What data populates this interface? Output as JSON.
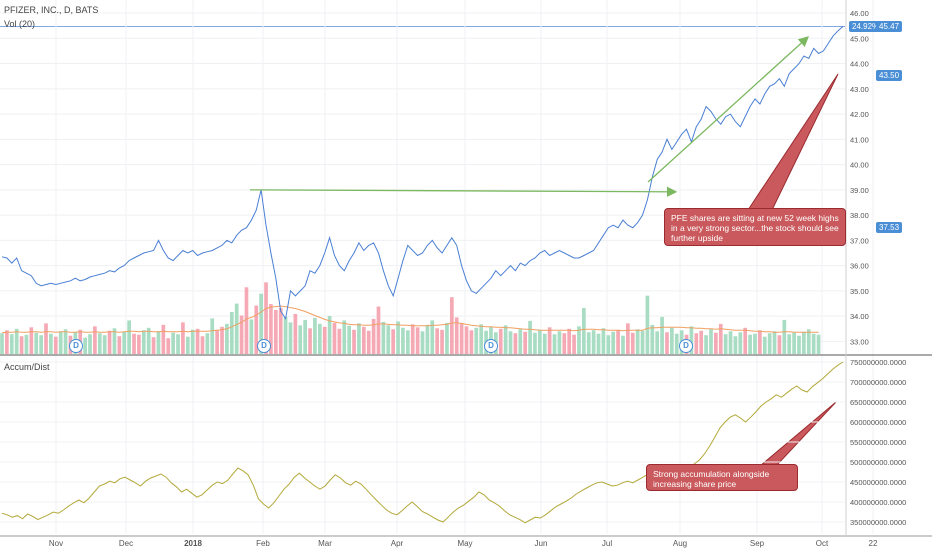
{
  "header": {
    "title": "PFIZER, INC., D, BATS",
    "volume_label": "Vol (20)",
    "accum_label": "Accum/Dist"
  },
  "badges": {
    "change_pct": "24.92%",
    "last_price": "45.47",
    "level_1": "43.50",
    "level_2": "37.53"
  },
  "colors": {
    "price_line": "#4a7fd4",
    "trend_arrow": "#7cb860",
    "callout_fill": "#c9595c",
    "callout_border": "#9a2b2f",
    "volume_up": "#a8dcc3",
    "volume_down": "#f5a9b4",
    "volume_ma": "#f0a060",
    "accum_line": "#b3a93a",
    "badge_blue": "#4a8ed6"
  },
  "annotations": {
    "callout_price": "PFE shares are sitting at new 52 week highs in a very strong sector...the stock should see further upside",
    "callout_accum": "Strong accumulation alongside increasing share price",
    "dividend_marker": "D"
  },
  "chart_data": [
    {
      "type": "line",
      "series": [
        {
          "values": [
            36.35,
            36.3,
            36.1,
            36.3,
            35.8,
            35.7,
            35.6,
            35.3,
            35.2,
            35.25,
            35.3,
            35.25,
            35.3,
            35.35,
            35.4,
            35.5,
            35.4,
            35.45,
            35.55,
            35.6,
            35.65,
            35.7,
            35.8,
            35.75,
            35.9,
            36.0,
            36.2,
            36.3,
            36.4,
            36.5,
            36.55,
            36.6,
            37.0,
            36.6,
            36.3,
            36.2,
            36.4,
            36.6,
            36.5,
            36.6,
            36.4,
            36.5,
            36.55,
            36.6,
            36.7,
            36.8,
            37.0,
            36.9,
            37.2,
            37.4,
            37.5,
            37.8,
            38.2,
            39.0,
            37.6,
            36.5,
            35.5,
            34.2,
            33.9,
            35.0,
            34.8,
            35.0,
            35.2,
            35.8,
            35.7,
            36.0,
            36.5,
            37.1,
            36.4,
            36.0,
            35.8,
            36.2,
            36.5,
            36.9,
            36.6,
            36.8,
            36.9,
            36.5,
            35.8,
            35.2,
            34.8,
            35.5,
            36.2,
            36.8,
            36.6,
            36.4,
            36.5,
            36.8,
            37.0,
            36.7,
            36.5,
            36.8,
            37.1,
            36.8,
            36.0,
            35.4,
            35.0,
            34.9,
            35.1,
            35.3,
            35.5,
            35.8,
            35.6,
            35.8,
            36.0,
            35.8,
            36.1,
            36.0,
            36.2,
            36.3,
            36.5,
            36.6,
            36.4,
            36.5,
            36.6,
            36.5,
            36.4,
            36.3,
            36.3,
            36.4,
            36.5,
            36.6,
            36.9,
            37.2,
            37.5,
            37.6,
            37.5,
            37.8,
            37.6,
            37.5,
            37.7,
            38.0,
            38.6,
            39.5,
            40.2,
            40.5,
            41.0,
            40.6,
            40.9,
            41.2,
            41.4,
            40.9,
            41.5,
            41.8,
            42.3,
            42.1,
            41.8,
            41.6,
            41.9,
            42.0,
            41.7,
            41.5,
            41.9,
            42.3,
            42.6,
            42.4,
            42.8,
            43.1,
            43.2,
            43.4,
            43.1,
            43.6,
            43.8,
            44.0,
            44.3,
            44.2,
            44.6,
            44.4,
            44.5,
            44.8,
            45.1,
            45.3,
            45.47
          ],
          "x_range": [
            "2017-10-09",
            "2018-10-05"
          ]
        }
      ],
      "y_ticks": [
        "33.00",
        "34.00",
        "35.00",
        "36.00",
        "37.00",
        "38.00",
        "39.00",
        "40.00",
        "41.00",
        "42.00",
        "43.00",
        "44.00",
        "45.00",
        "46.00"
      ],
      "ylim": [
        32.5,
        46.2
      ],
      "x_ticks": [
        "Nov",
        "Dec",
        "2018",
        "Feb",
        "Mar",
        "Apr",
        "May",
        "Jun",
        "Jul",
        "Aug",
        "Sep",
        "Oct",
        "22"
      ]
    },
    {
      "type": "bar",
      "series": [
        {
          "values": [
            4.2,
            4.8,
            4.0,
            5.1,
            3.6,
            3.9,
            5.4,
            4.3,
            3.8,
            6.2,
            4.1,
            3.5,
            4.6,
            5.0,
            3.7,
            4.4,
            4.9,
            3.3,
            4.0,
            5.6,
            4.2,
            3.8,
            4.7,
            5.2,
            3.6,
            4.5,
            6.8,
            4.1,
            3.9,
            4.8,
            5.3,
            3.4,
            4.6,
            5.9,
            3.2,
            4.3,
            4.0,
            6.4,
            3.5,
            4.9,
            5.1,
            3.6,
            4.2,
            7.2,
            4.8,
            5.5,
            6.1,
            8.5,
            10.2,
            7.8,
            13.5,
            7.0,
            9.8,
            12.2,
            14.5,
            10.1,
            8.9,
            9.3,
            7.5,
            6.4,
            8.1,
            5.8,
            6.9,
            5.2,
            7.3,
            6.1,
            5.5,
            7.7,
            6.3,
            5.1,
            6.8,
            5.7,
            4.9,
            6.2,
            5.5,
            4.7,
            7.1,
            9.6,
            6.5,
            5.8,
            5.0,
            6.6,
            5.3,
            4.8,
            6.0,
            5.4,
            4.6,
            5.9,
            6.8,
            5.2,
            4.9,
            6.3,
            11.5,
            7.4,
            6.2,
            5.6,
            4.8,
            5.3,
            6.0,
            4.7,
            5.5,
            4.4,
            5.1,
            5.8,
            4.6,
            4.2,
            5.0,
            4.5,
            6.7,
            4.3,
            4.9,
            4.1,
            5.4,
            4.0,
            4.6,
            4.2,
            5.1,
            3.9,
            5.6,
            9.3,
            4.4,
            4.8,
            4.1,
            5.2,
            3.8,
            4.5,
            4.9,
            3.7,
            6.2,
            4.3,
            5.0,
            4.7,
            11.8,
            5.9,
            4.6,
            7.5,
            4.4,
            5.3,
            4.1,
            4.8,
            3.9,
            5.6,
            4.2,
            4.7,
            3.8,
            5.0,
            4.3,
            6.1,
            4.0,
            4.6,
            3.6,
            4.4,
            5.3,
            3.9,
            4.1,
            4.8,
            3.5,
            4.2,
            4.6,
            3.8,
            6.9,
            4.0,
            4.3,
            3.7,
            4.5,
            5.0,
            4.1,
            3.9
          ],
          "up": [
            true,
            false,
            true,
            true,
            false,
            true,
            false,
            true,
            true,
            false,
            true,
            false,
            true,
            true,
            false,
            true,
            false,
            true,
            true,
            false,
            true,
            true,
            false,
            true,
            false,
            true,
            true,
            false,
            false,
            true,
            true,
            false,
            true,
            false,
            false,
            true,
            true,
            false,
            true,
            true,
            false,
            false,
            true,
            true,
            false,
            false,
            true,
            true,
            true,
            false,
            false,
            true,
            false,
            true,
            false,
            false,
            false,
            false,
            true,
            true,
            false,
            true,
            true,
            false,
            true,
            true,
            false,
            true,
            false,
            false,
            true,
            true,
            false,
            true,
            false,
            false,
            false,
            false,
            true,
            true,
            false,
            true,
            true,
            true,
            false,
            false,
            true,
            true,
            true,
            false,
            false,
            true,
            false,
            false,
            false,
            false,
            false,
            true,
            true,
            true,
            true,
            true,
            false,
            true,
            true,
            false,
            true,
            false,
            true,
            true,
            true,
            true,
            false,
            true,
            true,
            false,
            false,
            false,
            true,
            true,
            true,
            true,
            true,
            true,
            true,
            true,
            false,
            true,
            false,
            false,
            true,
            true,
            true,
            true,
            true,
            true,
            false,
            true,
            true,
            true,
            false,
            true,
            false,
            false,
            true,
            true,
            false,
            false,
            true,
            true,
            true,
            true,
            false,
            true,
            true,
            false,
            true,
            true,
            true,
            false,
            true,
            true,
            true,
            true,
            true,
            true,
            true,
            true
          ],
          "ma": [
            4.3,
            4.4,
            4.4,
            4.5,
            4.4,
            4.4,
            4.5,
            4.5,
            4.4,
            4.5,
            4.5,
            4.4,
            4.5,
            4.5,
            4.4,
            4.4,
            4.5,
            4.4,
            4.4,
            4.5,
            4.4,
            4.4,
            4.5,
            4.5,
            4.4,
            4.5,
            4.6,
            4.6,
            4.5,
            4.6,
            4.6,
            4.5,
            4.5,
            4.6,
            4.5,
            4.5,
            4.5,
            4.6,
            4.5,
            4.6,
            4.6,
            4.6,
            4.6,
            4.7,
            4.8,
            4.9,
            5.1,
            5.5,
            6.0,
            6.4,
            7.1,
            7.4,
            7.9,
            8.5,
            9.2,
            9.5,
            9.6,
            9.7,
            9.6,
            9.4,
            9.2,
            8.9,
            8.6,
            8.2,
            7.8,
            7.4,
            7.0,
            6.7,
            6.5,
            6.3,
            6.2,
            6.0,
            5.9,
            5.9,
            5.8,
            5.8,
            5.9,
            6.1,
            6.1,
            6.0,
            5.9,
            5.9,
            5.8,
            5.8,
            5.7,
            5.7,
            5.7,
            5.7,
            5.8,
            5.8,
            5.9,
            6.0,
            6.3,
            6.3,
            6.2,
            6.0,
            5.8,
            5.7,
            5.6,
            5.5,
            5.5,
            5.4,
            5.4,
            5.3,
            5.3,
            5.2,
            5.1,
            5.0,
            5.0,
            4.9,
            4.8,
            4.8,
            4.8,
            4.8,
            4.8,
            4.8,
            4.8,
            4.7,
            4.8,
            5.0,
            5.0,
            5.0,
            4.9,
            4.9,
            4.8,
            4.8,
            4.8,
            4.7,
            4.8,
            4.8,
            4.8,
            4.8,
            5.2,
            5.3,
            5.3,
            5.4,
            5.4,
            5.4,
            5.4,
            5.4,
            5.3,
            5.3,
            5.2,
            5.2,
            5.1,
            5.1,
            5.0,
            5.1,
            5.0,
            4.9,
            4.8,
            4.8,
            4.8,
            4.7,
            4.6,
            4.6,
            4.5,
            4.5,
            4.4,
            4.4,
            4.5,
            4.5,
            4.4,
            4.4,
            4.4,
            4.4,
            4.4,
            4.4
          ]
        }
      ]
    },
    {
      "type": "line",
      "series": [
        {
          "values": [
            372,
            368,
            362,
            366,
            358,
            370,
            364,
            356,
            362,
            368,
            375,
            372,
            380,
            390,
            398,
            405,
            398,
            410,
            425,
            440,
            445,
            452,
            448,
            458,
            462,
            455,
            448,
            440,
            452,
            460,
            465,
            470,
            462,
            448,
            438,
            425,
            432,
            422,
            412,
            418,
            430,
            442,
            450,
            446,
            454,
            470,
            485,
            478,
            468,
            442,
            408,
            395,
            385,
            398,
            415,
            432,
            445,
            462,
            472,
            460,
            450,
            440,
            432,
            440,
            455,
            468,
            460,
            448,
            442,
            452,
            445,
            432,
            418,
            405,
            392,
            380,
            372,
            368,
            378,
            390,
            400,
            388,
            376,
            370,
            362,
            355,
            350,
            362,
            375,
            385,
            392,
            402,
            412,
            425,
            418,
            405,
            398,
            390,
            378,
            368,
            362,
            356,
            348,
            355,
            362,
            360,
            368,
            378,
            388,
            395,
            402,
            410,
            420,
            428,
            435,
            442,
            448,
            450,
            445,
            440,
            442,
            448,
            452,
            448,
            455,
            462,
            470,
            475,
            482,
            476,
            472,
            478,
            485,
            490,
            488,
            495,
            505,
            520,
            540,
            562,
            585,
            600,
            612,
            618,
            610,
            600,
            612,
            625,
            640,
            650,
            658,
            668,
            662,
            672,
            682,
            690,
            680,
            675,
            688,
            698,
            708,
            720,
            732,
            742,
            750
          ],
          "x_range": [
            "2017-10-09",
            "2018-10-05"
          ]
        }
      ],
      "y_ticks": [
        "350000000.0000",
        "400000000.0000",
        "450000000.0000",
        "500000000.0000",
        "550000000.0000",
        "600000000.0000",
        "650000000.0000",
        "700000000.0000",
        "750000000.0000"
      ],
      "ylim": [
        320,
        765
      ],
      "y_unit_note": "values in millions"
    }
  ]
}
